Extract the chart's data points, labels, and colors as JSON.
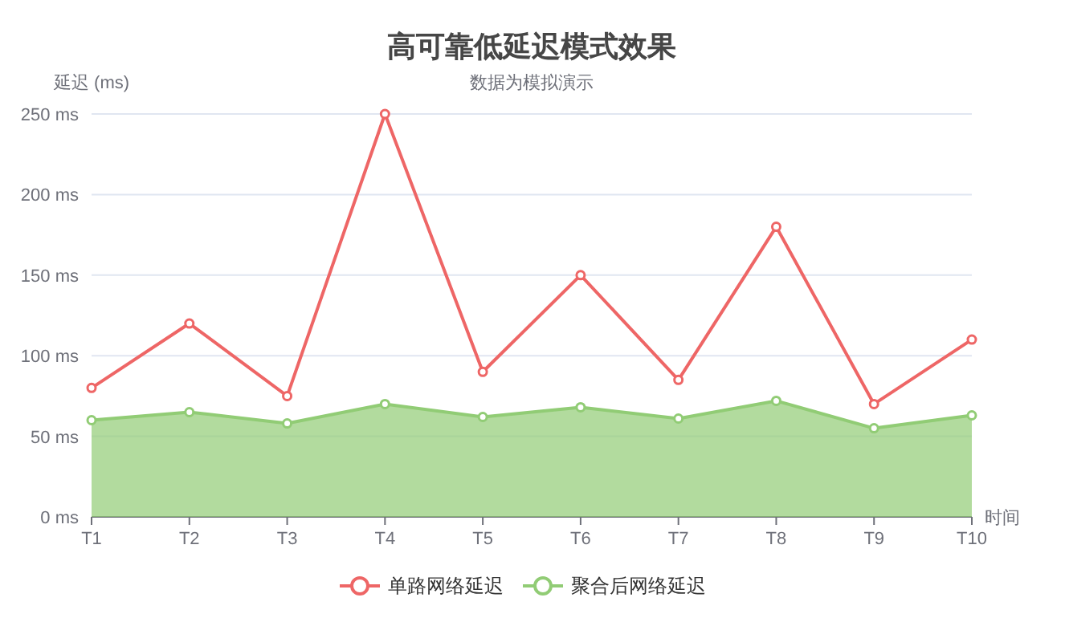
{
  "chart_data": {
    "type": "line",
    "title": "高可靠低延迟模式效果",
    "subtitle": "数据为模拟演示",
    "ylabel": "延迟 (ms)",
    "xlabel": "时间",
    "categories": [
      "T1",
      "T2",
      "T3",
      "T4",
      "T5",
      "T6",
      "T7",
      "T8",
      "T9",
      "T10"
    ],
    "series": [
      {
        "name": "单路网络延迟",
        "type": "line",
        "color": "#ee6666",
        "values": [
          80,
          120,
          75,
          250,
          90,
          150,
          85,
          180,
          70,
          110
        ]
      },
      {
        "name": "聚合后网络延迟",
        "type": "area",
        "color": "#91cc75",
        "values": [
          60,
          65,
          58,
          70,
          62,
          68,
          61,
          72,
          55,
          63
        ]
      }
    ],
    "ylim": [
      0,
      250
    ],
    "yticks": [
      {
        "value": 0,
        "label": "0 ms"
      },
      {
        "value": 50,
        "label": "50 ms"
      },
      {
        "value": 100,
        "label": "100 ms"
      },
      {
        "value": 150,
        "label": "150 ms"
      },
      {
        "value": 200,
        "label": "200 ms"
      },
      {
        "value": 250,
        "label": "250 ms"
      }
    ],
    "grid": "y",
    "legend": "bottom",
    "marker": "circle"
  }
}
